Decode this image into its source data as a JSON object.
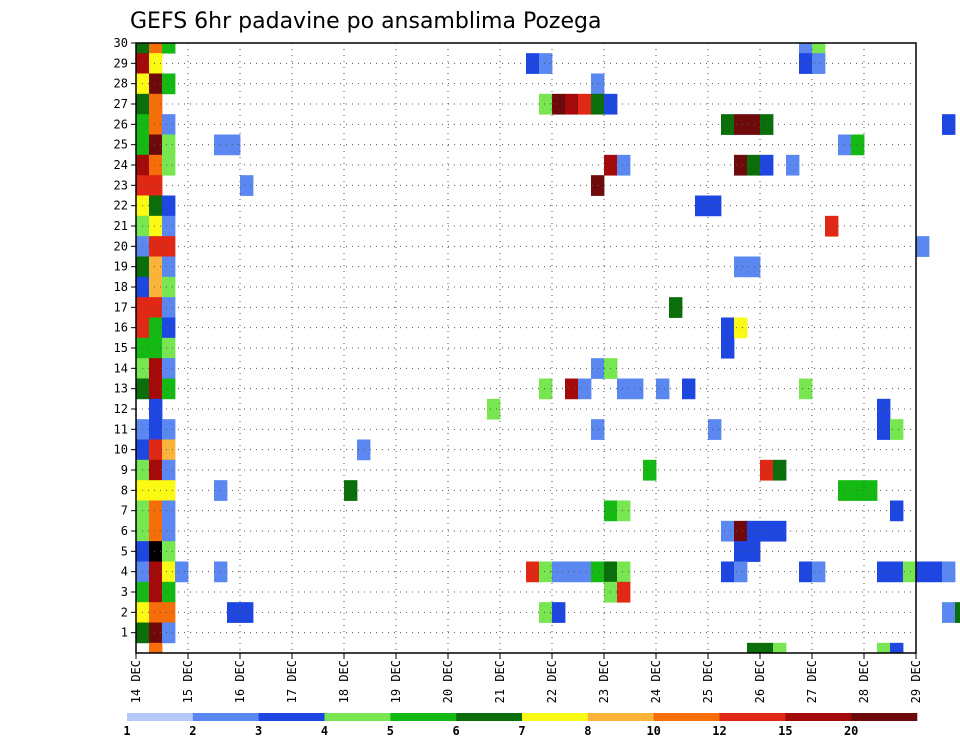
{
  "chart_data": {
    "type": "heatmap",
    "title": "GEFS 6hr padavine po ansamblima Pozega",
    "y_members": [
      1,
      30
    ],
    "ytick_labels": [
      "1",
      "2",
      "3",
      "4",
      "5",
      "6",
      "7",
      "8",
      "9",
      "10",
      "11",
      "12",
      "13",
      "14",
      "15",
      "16",
      "17",
      "18",
      "19",
      "20",
      "21",
      "22",
      "23",
      "24",
      "25",
      "26",
      "27",
      "28",
      "29",
      "30"
    ],
    "xtick_labels": [
      "14 DEC",
      "15 DEC",
      "16 DEC",
      "17 DEC",
      "18 DEC",
      "19 DEC",
      "20 DEC",
      "21 DEC",
      "22 DEC",
      "23 DEC",
      "24 DEC",
      "25 DEC",
      "26 DEC",
      "27 DEC",
      "28 DEC",
      "29 DEC"
    ],
    "x_step_hours": 6,
    "colorbar": {
      "labels": [
        "1",
        "2",
        "3",
        "4",
        "5",
        "6",
        "7",
        "8",
        "10",
        "12",
        "15",
        "20"
      ],
      "colors": [
        "#b4c8fa",
        "#5a87f0",
        "#1e46e1",
        "#78e650",
        "#14b914",
        "#0a6e0a",
        "#fafa14",
        "#fab43c",
        "#f56e0a",
        "#e12814",
        "#a50a0a",
        "#6e0a0a"
      ]
    },
    "cells": [
      [
        0,
        30,
        5
      ],
      [
        0,
        29,
        10
      ],
      [
        0,
        28,
        6
      ],
      [
        0,
        27,
        5
      ],
      [
        0,
        26,
        4
      ],
      [
        0,
        25,
        4
      ],
      [
        0,
        24,
        10
      ],
      [
        0,
        23,
        9
      ],
      [
        0,
        22,
        6
      ],
      [
        0,
        21,
        3
      ],
      [
        0,
        20,
        1
      ],
      [
        0,
        19,
        5
      ],
      [
        0,
        18,
        2
      ],
      [
        0,
        17,
        9
      ],
      [
        0,
        16,
        9
      ],
      [
        0,
        15,
        4
      ],
      [
        0,
        14,
        3
      ],
      [
        0,
        13,
        5
      ],
      [
        0,
        11,
        1
      ],
      [
        0,
        10,
        2
      ],
      [
        0,
        9,
        3
      ],
      [
        0,
        8,
        6
      ],
      [
        0,
        7,
        3
      ],
      [
        0,
        6,
        3
      ],
      [
        0,
        5,
        2
      ],
      [
        0,
        4,
        1
      ],
      [
        0,
        3,
        4
      ],
      [
        0,
        2,
        6
      ],
      [
        0,
        1,
        5
      ],
      [
        1,
        30,
        8
      ],
      [
        1,
        29,
        6
      ],
      [
        1,
        28,
        11
      ],
      [
        1,
        27,
        8
      ],
      [
        1,
        26,
        8
      ],
      [
        1,
        25,
        11
      ],
      [
        1,
        24,
        8
      ],
      [
        1,
        23,
        9
      ],
      [
        1,
        22,
        5
      ],
      [
        1,
        21,
        6
      ],
      [
        1,
        20,
        9
      ],
      [
        1,
        19,
        7
      ],
      [
        1,
        18,
        7
      ],
      [
        1,
        17,
        9
      ],
      [
        1,
        16,
        4
      ],
      [
        1,
        15,
        4
      ],
      [
        1,
        14,
        10
      ],
      [
        1,
        13,
        10
      ],
      [
        1,
        12,
        2
      ],
      [
        1,
        11,
        2
      ],
      [
        1,
        10,
        9
      ],
      [
        1,
        9,
        10
      ],
      [
        1,
        8,
        6
      ],
      [
        1,
        7,
        8
      ],
      [
        1,
        6,
        8
      ],
      [
        1,
        5,
        12
      ],
      [
        1,
        4,
        10
      ],
      [
        1,
        3,
        10
      ],
      [
        1,
        2,
        8
      ],
      [
        1,
        1,
        11
      ],
      [
        1,
        0,
        8
      ],
      [
        2,
        30,
        4
      ],
      [
        2,
        28,
        4
      ],
      [
        2,
        26,
        1
      ],
      [
        2,
        25,
        3
      ],
      [
        2,
        24,
        3
      ],
      [
        2,
        22,
        2
      ],
      [
        2,
        21,
        1
      ],
      [
        2,
        20,
        9
      ],
      [
        2,
        19,
        1
      ],
      [
        2,
        18,
        3
      ],
      [
        2,
        17,
        1
      ],
      [
        2,
        16,
        2
      ],
      [
        2,
        15,
        3
      ],
      [
        2,
        14,
        1
      ],
      [
        2,
        13,
        4
      ],
      [
        2,
        11,
        1
      ],
      [
        2,
        10,
        7
      ],
      [
        2,
        9,
        1
      ],
      [
        2,
        8,
        6
      ],
      [
        2,
        7,
        1
      ],
      [
        2,
        6,
        1
      ],
      [
        2,
        5,
        3
      ],
      [
        2,
        4,
        6
      ],
      [
        2,
        3,
        4
      ],
      [
        2,
        2,
        8
      ],
      [
        2,
        1,
        1
      ],
      [
        3,
        4,
        1
      ],
      [
        6,
        25,
        1
      ],
      [
        6,
        8,
        1
      ],
      [
        6,
        4,
        1
      ],
      [
        7,
        25,
        1
      ],
      [
        8,
        23,
        1
      ],
      [
        7,
        2,
        2
      ],
      [
        8,
        2,
        2
      ],
      [
        17,
        10,
        1
      ],
      [
        16,
        8,
        5
      ],
      [
        27,
        12,
        3
      ],
      [
        30,
        29,
        2
      ],
      [
        30,
        4,
        9
      ],
      [
        31,
        29,
        1
      ],
      [
        31,
        27,
        3
      ],
      [
        31,
        13,
        3
      ],
      [
        31,
        4,
        3
      ],
      [
        31,
        2,
        3
      ],
      [
        32,
        27,
        11
      ],
      [
        32,
        4,
        1
      ],
      [
        32,
        2,
        2
      ],
      [
        33,
        27,
        10
      ],
      [
        33,
        13,
        10
      ],
      [
        33,
        4,
        1
      ],
      [
        34,
        27,
        9
      ],
      [
        34,
        13,
        1
      ],
      [
        34,
        4,
        1
      ],
      [
        35,
        28,
        1
      ],
      [
        35,
        27,
        5
      ],
      [
        35,
        23,
        11
      ],
      [
        35,
        14,
        1
      ],
      [
        35,
        11,
        1
      ],
      [
        35,
        4,
        4
      ],
      [
        36,
        27,
        2
      ],
      [
        36,
        24,
        10
      ],
      [
        36,
        14,
        3
      ],
      [
        36,
        7,
        4
      ],
      [
        36,
        4,
        5
      ],
      [
        36,
        3,
        3
      ],
      [
        37,
        24,
        1
      ],
      [
        37,
        13,
        1
      ],
      [
        37,
        7,
        3
      ],
      [
        37,
        4,
        3
      ],
      [
        37,
        3,
        9
      ],
      [
        38,
        13,
        1
      ],
      [
        39,
        9,
        4
      ],
      [
        40,
        13,
        1
      ],
      [
        41,
        17,
        5
      ],
      [
        42,
        13,
        2
      ],
      [
        43,
        22,
        2
      ],
      [
        44,
        22,
        2
      ],
      [
        44,
        11,
        1
      ],
      [
        45,
        26,
        5
      ],
      [
        45,
        16,
        2
      ],
      [
        45,
        15,
        2
      ],
      [
        45,
        6,
        1
      ],
      [
        45,
        4,
        2
      ],
      [
        46,
        26,
        11
      ],
      [
        46,
        24,
        11
      ],
      [
        46,
        19,
        1
      ],
      [
        46,
        16,
        6
      ],
      [
        46,
        6,
        11
      ],
      [
        46,
        5,
        2
      ],
      [
        46,
        4,
        1
      ],
      [
        47,
        26,
        11
      ],
      [
        47,
        24,
        5
      ],
      [
        47,
        19,
        1
      ],
      [
        47,
        6,
        2
      ],
      [
        47,
        5,
        2
      ],
      [
        47,
        0,
        5
      ],
      [
        48,
        26,
        5
      ],
      [
        48,
        24,
        2
      ],
      [
        48,
        9,
        9
      ],
      [
        48,
        6,
        2
      ],
      [
        48,
        0,
        5
      ],
      [
        49,
        9,
        5
      ],
      [
        49,
        6,
        2
      ],
      [
        49,
        0,
        3
      ],
      [
        50,
        24,
        1
      ],
      [
        51,
        30,
        1
      ],
      [
        51,
        29,
        2
      ],
      [
        51,
        13,
        3
      ],
      [
        51,
        4,
        2
      ],
      [
        52,
        30,
        3
      ],
      [
        52,
        29,
        1
      ],
      [
        52,
        4,
        1
      ],
      [
        53,
        21,
        9
      ],
      [
        54,
        25,
        1
      ],
      [
        54,
        8,
        4
      ],
      [
        55,
        25,
        4
      ],
      [
        55,
        8,
        4
      ],
      [
        56,
        8,
        4
      ],
      [
        57,
        12,
        2
      ],
      [
        57,
        11,
        2
      ],
      [
        57,
        4,
        2
      ],
      [
        57,
        0,
        3
      ],
      [
        58,
        11,
        3
      ],
      [
        58,
        7,
        2
      ],
      [
        58,
        4,
        2
      ],
      [
        58,
        0,
        2
      ],
      [
        59,
        4,
        3
      ],
      [
        60,
        20,
        1
      ],
      [
        60,
        4,
        2
      ],
      [
        61,
        4,
        2
      ],
      [
        62,
        26,
        2
      ],
      [
        62,
        4,
        1
      ],
      [
        62,
        2,
        1
      ],
      [
        63,
        2,
        5
      ],
      [
        64,
        2,
        2
      ],
      [
        65,
        2,
        1
      ],
      [
        65,
        10,
        2
      ],
      [
        66,
        10,
        1
      ],
      [
        67,
        30,
        2
      ],
      [
        67,
        29,
        5
      ],
      [
        67,
        27,
        3
      ],
      [
        67,
        20,
        1
      ],
      [
        67,
        10,
        5
      ],
      [
        68,
        27,
        8
      ]
    ]
  }
}
